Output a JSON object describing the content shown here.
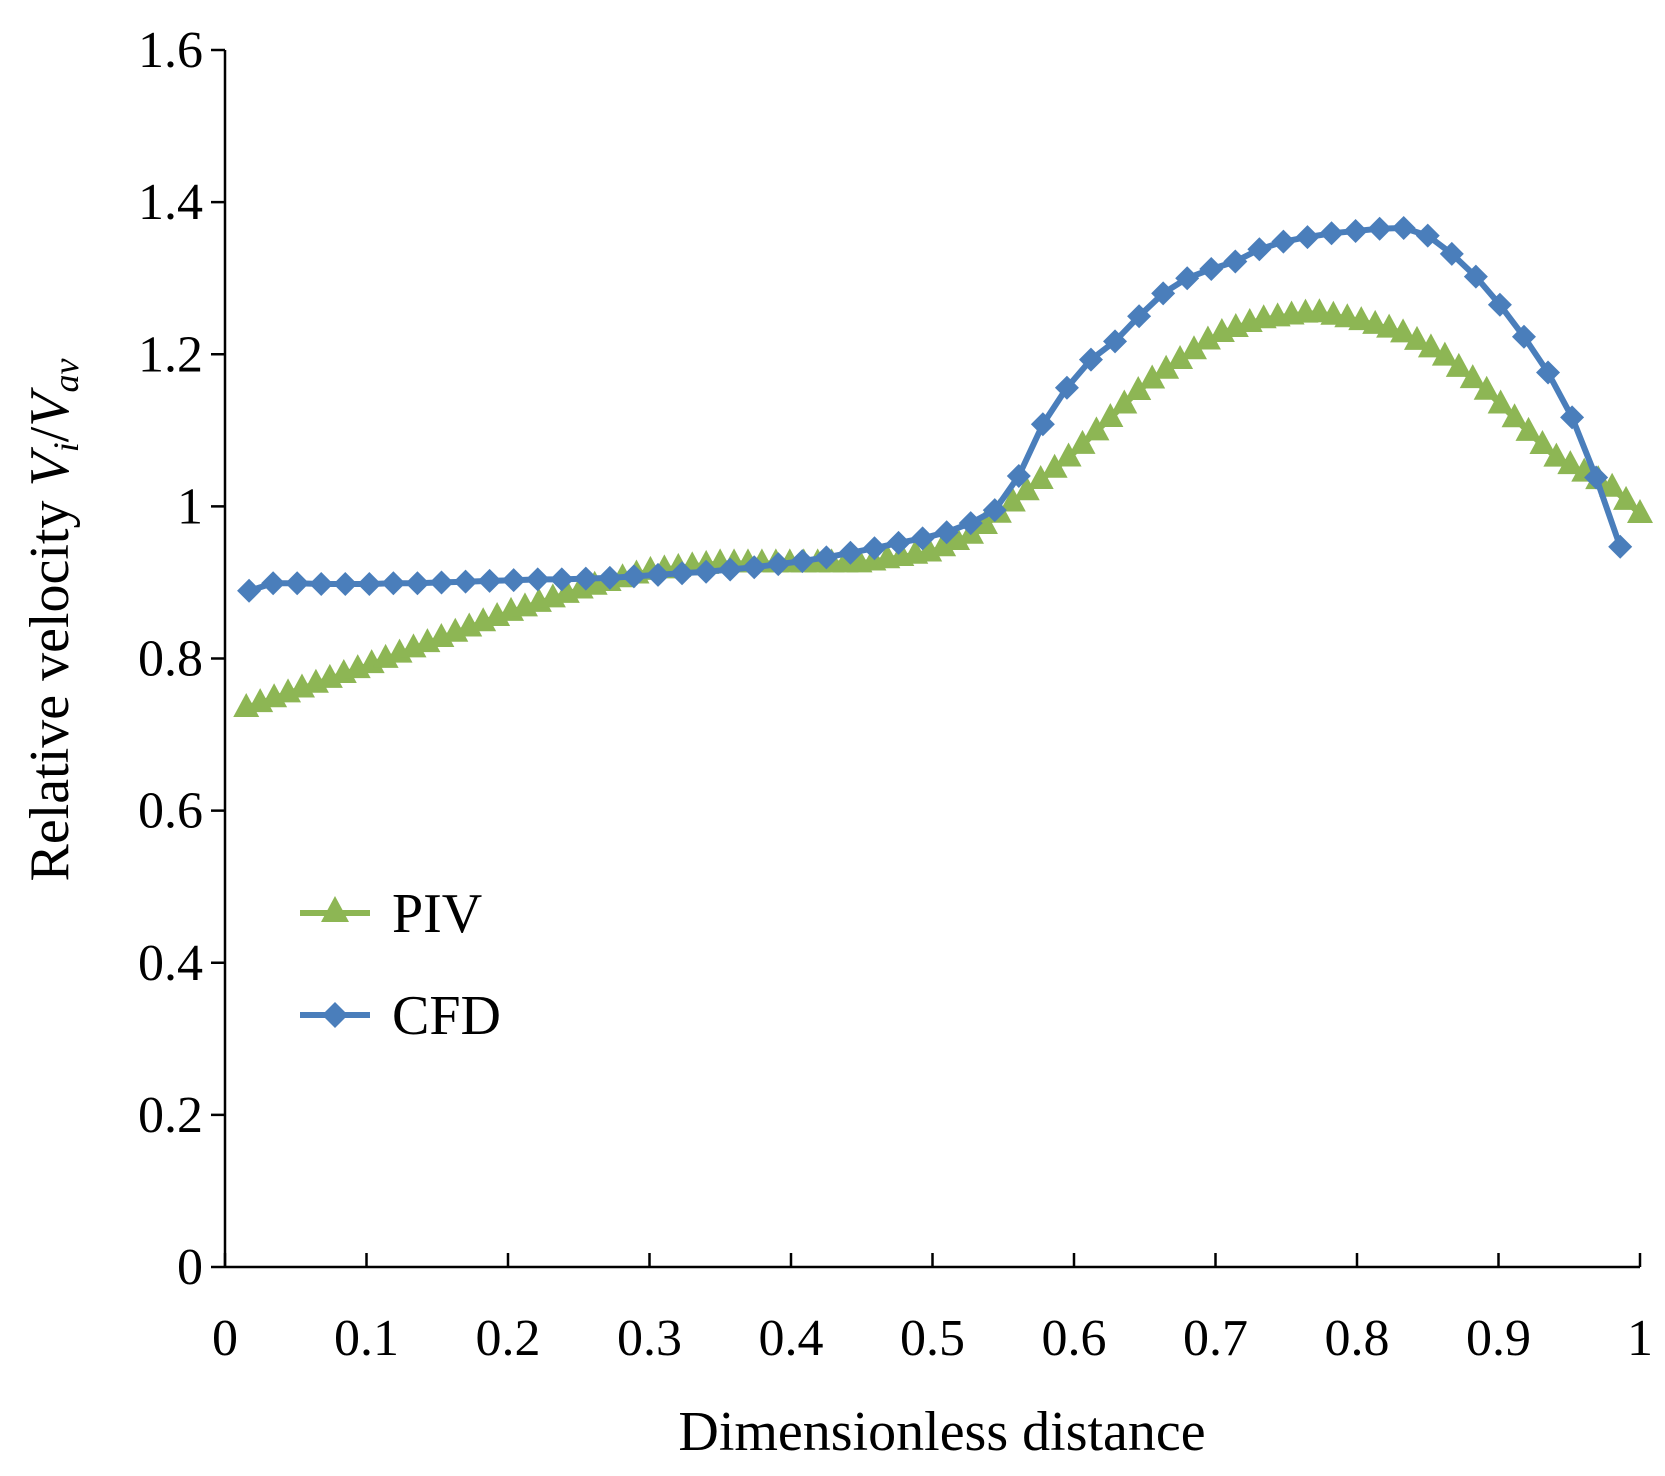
{
  "chart_data": {
    "type": "line",
    "title": "",
    "xlabel": "Dimensionless distance",
    "ylabel_prefix": "Relative velocity ",
    "ylabel_var1": "V",
    "ylabel_sub1": "i",
    "ylabel_sep": "/",
    "ylabel_var2": "V",
    "ylabel_sub2": "av",
    "xlim": [
      0,
      1
    ],
    "ylim": [
      0,
      1.6
    ],
    "xticks": [
      0,
      0.1,
      0.2,
      0.3,
      0.4,
      0.5,
      0.6,
      0.7,
      0.8,
      0.9,
      1
    ],
    "xtick_labels": [
      "0",
      "0.1",
      "0.2",
      "0.3",
      "0.4",
      "0.5",
      "0.6",
      "0.7",
      "0.8",
      "0.9",
      "1"
    ],
    "yticks": [
      0,
      0.2,
      0.4,
      0.6,
      0.8,
      1.0,
      1.2,
      1.4,
      1.6
    ],
    "ytick_labels": [
      "0",
      "0.2",
      "0.4",
      "0.6",
      "0.8",
      "1",
      "1.2",
      "1.4",
      "1.6"
    ],
    "legend_position": "center-left",
    "series": [
      {
        "name": "PIV",
        "marker": "triangle",
        "color": "#8DB654",
        "points": [
          [
            0.015,
            0.735
          ],
          [
            0.1,
            0.79
          ],
          [
            0.2,
            0.86
          ],
          [
            0.25,
            0.89
          ],
          [
            0.3,
            0.915
          ],
          [
            0.35,
            0.925
          ],
          [
            0.4,
            0.925
          ],
          [
            0.45,
            0.925
          ],
          [
            0.5,
            0.94
          ],
          [
            0.53,
            0.965
          ],
          [
            0.56,
            1.01
          ],
          [
            0.6,
            1.07
          ],
          [
            0.65,
            1.16
          ],
          [
            0.7,
            1.225
          ],
          [
            0.73,
            1.245
          ],
          [
            0.77,
            1.255
          ],
          [
            0.8,
            1.245
          ],
          [
            0.83,
            1.23
          ],
          [
            0.86,
            1.2
          ],
          [
            0.89,
            1.155
          ],
          [
            0.92,
            1.1
          ],
          [
            0.94,
            1.065
          ],
          [
            0.96,
            1.045
          ],
          [
            0.98,
            1.025
          ],
          [
            1.0,
            0.99
          ]
        ],
        "n_markers": 101
      },
      {
        "name": "CFD",
        "marker": "diamond",
        "color": "#4A7EBB",
        "points": [
          [
            0.017,
            0.889
          ],
          [
            0.034,
            0.899
          ],
          [
            0.051,
            0.899
          ],
          [
            0.068,
            0.898
          ],
          [
            0.085,
            0.898
          ],
          [
            0.102,
            0.898
          ],
          [
            0.119,
            0.899
          ],
          [
            0.136,
            0.899
          ],
          [
            0.153,
            0.9
          ],
          [
            0.17,
            0.901
          ],
          [
            0.187,
            0.902
          ],
          [
            0.204,
            0.903
          ],
          [
            0.221,
            0.904
          ],
          [
            0.238,
            0.904
          ],
          [
            0.255,
            0.905
          ],
          [
            0.272,
            0.906
          ],
          [
            0.289,
            0.908
          ],
          [
            0.306,
            0.91
          ],
          [
            0.323,
            0.912
          ],
          [
            0.34,
            0.914
          ],
          [
            0.357,
            0.917
          ],
          [
            0.374,
            0.92
          ],
          [
            0.391,
            0.924
          ],
          [
            0.408,
            0.928
          ],
          [
            0.425,
            0.933
          ],
          [
            0.442,
            0.939
          ],
          [
            0.459,
            0.945
          ],
          [
            0.476,
            0.952
          ],
          [
            0.493,
            0.958
          ],
          [
            0.51,
            0.966
          ],
          [
            0.527,
            0.978
          ],
          [
            0.544,
            0.995
          ],
          [
            0.561,
            1.04
          ],
          [
            0.578,
            1.108
          ],
          [
            0.595,
            1.156
          ],
          [
            0.612,
            1.193
          ],
          [
            0.629,
            1.217
          ],
          [
            0.646,
            1.25
          ],
          [
            0.663,
            1.28
          ],
          [
            0.68,
            1.3
          ],
          [
            0.697,
            1.312
          ],
          [
            0.714,
            1.322
          ],
          [
            0.731,
            1.338
          ],
          [
            0.748,
            1.348
          ],
          [
            0.765,
            1.354
          ],
          [
            0.782,
            1.359
          ],
          [
            0.799,
            1.362
          ],
          [
            0.816,
            1.365
          ],
          [
            0.833,
            1.366
          ],
          [
            0.85,
            1.356
          ],
          [
            0.867,
            1.332
          ],
          [
            0.884,
            1.302
          ],
          [
            0.901,
            1.265
          ],
          [
            0.918,
            1.223
          ],
          [
            0.935,
            1.176
          ],
          [
            0.952,
            1.117
          ],
          [
            0.969,
            1.038
          ],
          [
            0.986,
            0.947
          ]
        ]
      }
    ]
  }
}
